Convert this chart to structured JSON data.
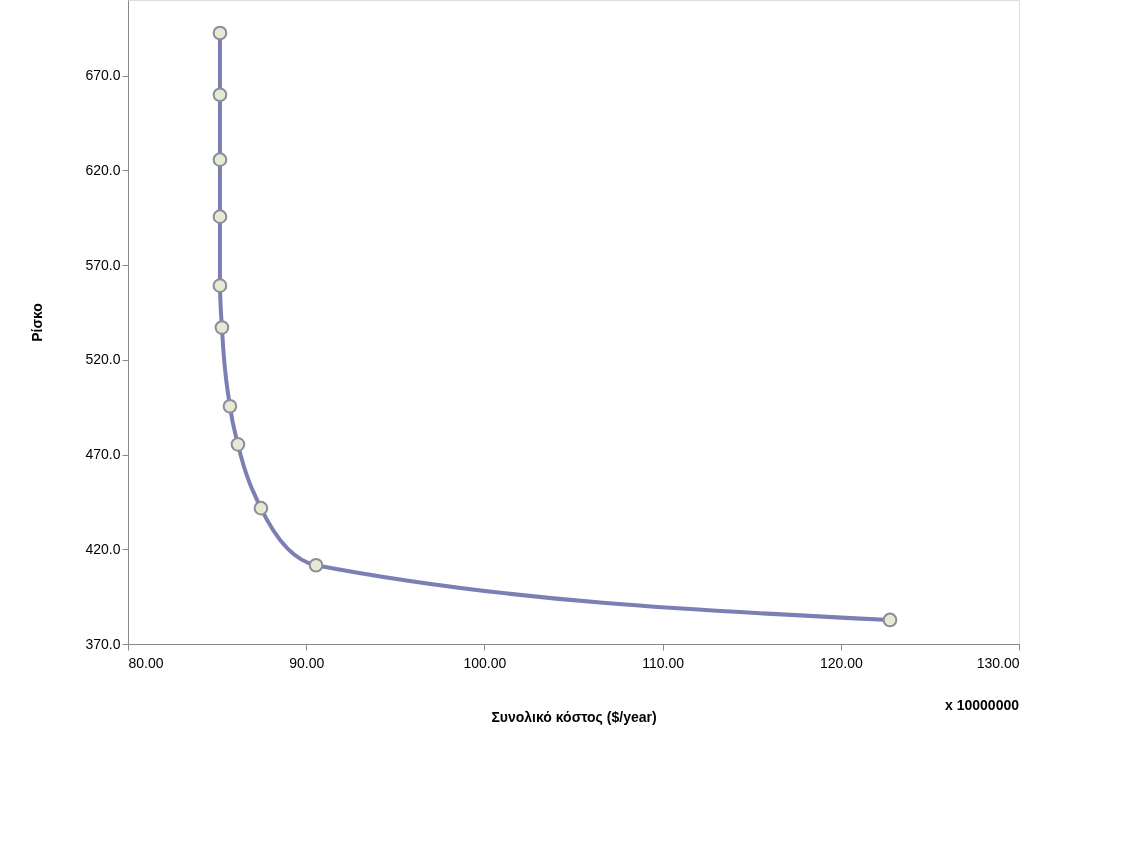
{
  "chart_data": {
    "type": "line",
    "xlabel": "Συνολικό κόστος ($/year)",
    "ylabel": "Ρίσκο",
    "annotations": [
      "x 10000000"
    ],
    "x": [
      85.16,
      85.16,
      85.16,
      85.16,
      85.16,
      85.27,
      85.72,
      86.17,
      87.46,
      90.55,
      122.76
    ],
    "series": [
      {
        "color": "#7b7fb4",
        "values": [
          692.6,
          660.0,
          625.7,
          595.6,
          559.2,
          537.1,
          495.5,
          475.4,
          441.7,
          411.6,
          382.7
        ]
      }
    ],
    "xlim": [
      80,
      130
    ],
    "xticks": [
      {
        "value": 80,
        "label": "80.00"
      },
      {
        "value": 90,
        "label": "90.00"
      },
      {
        "value": 100,
        "label": "100.00"
      },
      {
        "value": 110,
        "label": "110.00"
      },
      {
        "value": 120,
        "label": "120.00"
      },
      {
        "value": 130,
        "label": "130.00"
      }
    ],
    "ylim": [
      370,
      710
    ],
    "yticks": [
      {
        "value": 370,
        "label": "370.0"
      },
      {
        "value": 420,
        "label": "420.0"
      },
      {
        "value": 470,
        "label": "470.0"
      },
      {
        "value": 520,
        "label": "520.0"
      },
      {
        "value": 570,
        "label": "570.0"
      },
      {
        "value": 620,
        "label": "620.0"
      },
      {
        "value": 670,
        "label": "670.0"
      }
    ],
    "marker": "circle",
    "grid": false
  }
}
